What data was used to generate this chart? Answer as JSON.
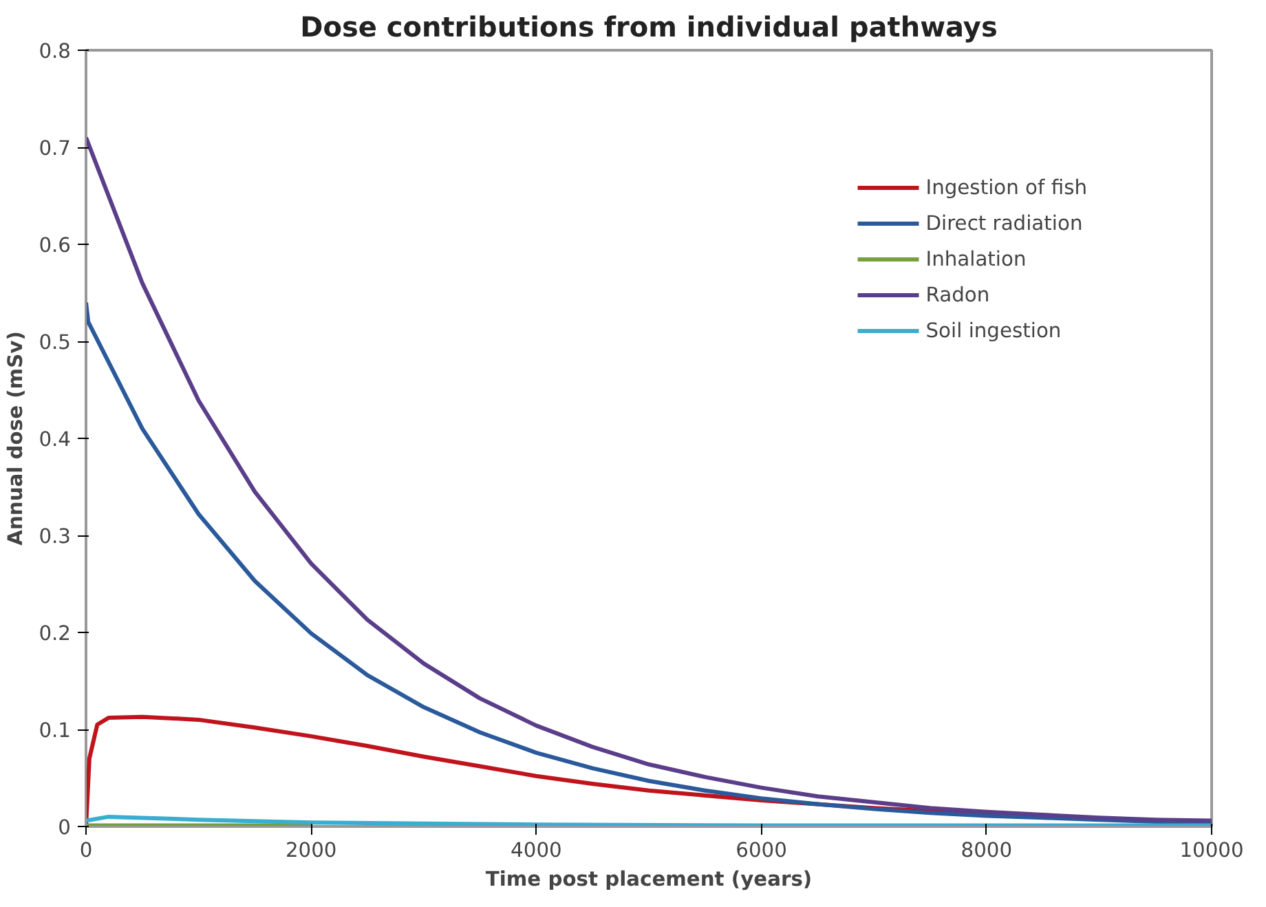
{
  "chart_data": {
    "type": "line",
    "title": "Dose contributions from individual pathways",
    "xlabel": "Time post placement (years)",
    "ylabel": "Annual dose (mSv)",
    "xlim": [
      0,
      10000
    ],
    "ylim": [
      0,
      0.8
    ],
    "xticks": [
      0,
      2000,
      4000,
      6000,
      8000,
      10000
    ],
    "yticks": [
      0,
      0.1,
      0.2,
      0.3,
      0.4,
      0.5,
      0.6,
      0.7,
      0.8
    ],
    "grid": false,
    "legend": "top right",
    "line_style": "solid",
    "series": [
      {
        "name": "Ingestion of fish",
        "color": "#c0141c",
        "x": [
          0,
          30,
          100,
          200,
          500,
          1000,
          1500,
          2000,
          2500,
          3000,
          3500,
          4000,
          4500,
          5000,
          6000,
          7000,
          8000,
          9000,
          10000
        ],
        "values": [
          0,
          0.07,
          0.105,
          0.112,
          0.113,
          0.11,
          0.102,
          0.093,
          0.083,
          0.072,
          0.062,
          0.052,
          0.044,
          0.037,
          0.027,
          0.019,
          0.013,
          0.008,
          0.005
        ]
      },
      {
        "name": "Direct radiation",
        "color": "#2a5a9b",
        "x": [
          0,
          20,
          500,
          1000,
          1500,
          2000,
          2500,
          3000,
          3500,
          4000,
          4500,
          5000,
          5500,
          6000,
          6500,
          7000,
          7500,
          8000,
          8500,
          9000,
          9500,
          10000
        ],
        "values": [
          0.54,
          0.52,
          0.41,
          0.322,
          0.253,
          0.199,
          0.156,
          0.123,
          0.097,
          0.076,
          0.06,
          0.047,
          0.037,
          0.029,
          0.023,
          0.018,
          0.014,
          0.011,
          0.009,
          0.007,
          0.005,
          0.004
        ]
      },
      {
        "name": "Inhalation",
        "color": "#77a03a",
        "x": [
          0,
          1000,
          2000
        ],
        "values": [
          0.001,
          0.001,
          0.001
        ]
      },
      {
        "name": "Radon",
        "color": "#5a3e8a",
        "x": [
          0,
          500,
          1000,
          1500,
          2000,
          2500,
          3000,
          3500,
          4000,
          4500,
          5000,
          5500,
          6000,
          6500,
          7000,
          7500,
          8000,
          8500,
          9000,
          9500,
          10000
        ],
        "values": [
          0.71,
          0.56,
          0.439,
          0.345,
          0.271,
          0.213,
          0.168,
          0.132,
          0.104,
          0.082,
          0.064,
          0.051,
          0.04,
          0.031,
          0.025,
          0.019,
          0.015,
          0.012,
          0.009,
          0.007,
          0.006
        ]
      },
      {
        "name": "Soil ingestion",
        "color": "#3aaed0",
        "x": [
          0,
          200,
          1000,
          2000,
          3000,
          4000,
          6000,
          8000,
          10000
        ],
        "values": [
          0.006,
          0.01,
          0.007,
          0.004,
          0.003,
          0.002,
          0.001,
          0.001,
          0.001
        ]
      }
    ]
  }
}
